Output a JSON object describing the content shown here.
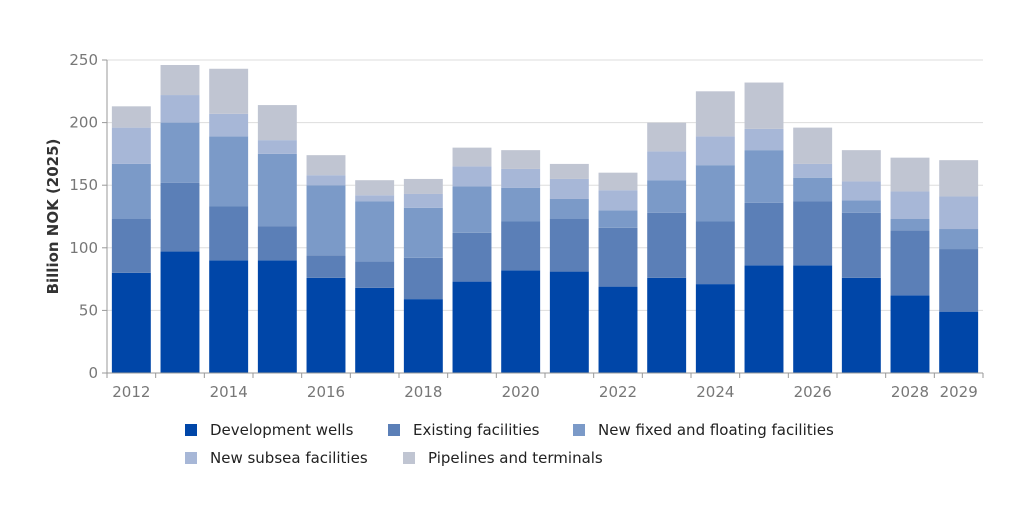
{
  "chart_data": {
    "type": "bar",
    "stacked": true,
    "categories": [
      "2012",
      "2013",
      "2014",
      "2015",
      "2016",
      "2017",
      "2018",
      "2019",
      "2020",
      "2021",
      "2022",
      "2023",
      "2024",
      "2025",
      "2026",
      "2027",
      "2028",
      "2029"
    ],
    "x_tick_labels": [
      "2012",
      "2014",
      "2016",
      "2018",
      "2020",
      "2022",
      "2024",
      "2026",
      "2028",
      "2029"
    ],
    "ylabel": "Billion NOK (2025)",
    "ylim": [
      0,
      250
    ],
    "yticks": [
      0,
      50,
      100,
      150,
      200,
      250
    ],
    "grid": true,
    "legend_position": "bottom",
    "series": [
      {
        "name": "Development wells",
        "color": "#0046a8",
        "values": [
          80,
          97,
          90,
          90,
          76,
          68,
          59,
          73,
          82,
          81,
          69,
          76,
          71,
          86,
          86,
          76,
          62,
          49
        ]
      },
      {
        "name": "Existing facilities",
        "color": "#5b7fb7",
        "values": [
          43,
          55,
          43,
          27,
          18,
          21,
          33,
          39,
          39,
          42,
          47,
          52,
          50,
          50,
          51,
          52,
          52,
          50
        ]
      },
      {
        "name": "New fixed and floating facilities",
        "color": "#7b9ac8",
        "values": [
          44,
          48,
          56,
          58,
          56,
          48,
          40,
          37,
          27,
          16,
          14,
          26,
          45,
          42,
          19,
          10,
          9,
          16
        ]
      },
      {
        "name": "New subsea facilities",
        "color": "#a7b7d7",
        "values": [
          29,
          22,
          18,
          11,
          8,
          5,
          11,
          16,
          15,
          16,
          16,
          23,
          23,
          17,
          11,
          15,
          22,
          26
        ]
      },
      {
        "name": "Pipelines and terminals",
        "color": "#c0c5d2",
        "values": [
          17,
          24,
          36,
          28,
          16,
          12,
          12,
          15,
          15,
          12,
          14,
          23,
          36,
          37,
          29,
          25,
          27,
          29
        ]
      }
    ]
  }
}
